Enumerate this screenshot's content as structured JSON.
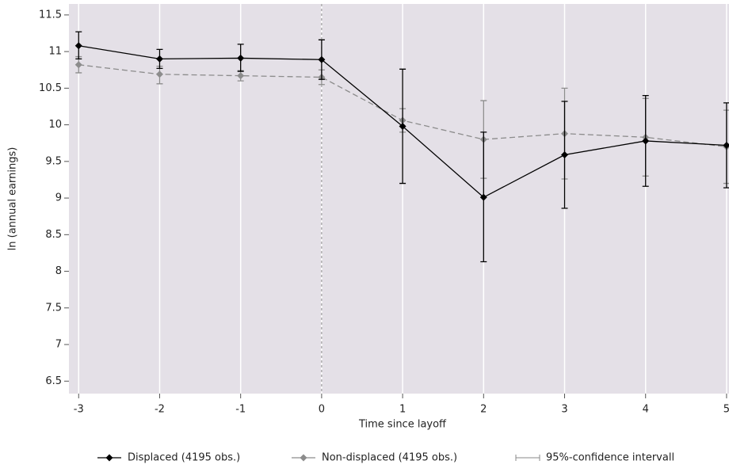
{
  "chart_data": {
    "type": "line",
    "x_label": "Time since layoff",
    "y_label": "ln (annual earnings)",
    "x": [
      -3,
      -2,
      -1,
      0,
      1,
      2,
      3,
      4,
      5
    ],
    "series": [
      {
        "name": "Displaced (4195 obs.)",
        "color": "#000000",
        "dash": false,
        "values": [
          11.08,
          10.9,
          10.91,
          10.89,
          9.98,
          9.01,
          9.59,
          9.78,
          9.72
        ],
        "lower": [
          10.9,
          10.77,
          10.73,
          10.62,
          9.2,
          8.13,
          8.86,
          9.16,
          9.14
        ],
        "upper": [
          11.27,
          11.03,
          11.1,
          11.16,
          10.76,
          9.9,
          10.32,
          10.4,
          10.3
        ]
      },
      {
        "name": "Non-displaced (4195 obs.)",
        "color": "#8c8c8c",
        "dash": true,
        "values": [
          10.82,
          10.69,
          10.67,
          10.65,
          10.06,
          9.8,
          9.88,
          9.83,
          9.7
        ],
        "lower": [
          10.71,
          10.56,
          10.6,
          10.55,
          9.9,
          9.27,
          9.26,
          9.3,
          9.2
        ],
        "upper": [
          10.93,
          10.8,
          10.74,
          10.75,
          10.22,
          10.33,
          10.5,
          10.36,
          10.2
        ]
      }
    ],
    "ci_legend": "95%-confidence intervall",
    "vline": 0,
    "xlim": [
      -3.12,
      5.03
    ],
    "ylim": [
      6.33,
      11.65
    ],
    "xticks": [
      -3,
      -2,
      -1,
      0,
      1,
      2,
      3,
      4,
      5
    ],
    "yticks": [
      6.5,
      7,
      7.5,
      8,
      8.5,
      9,
      9.5,
      10,
      10.5,
      11,
      11.5
    ],
    "grid": true,
    "background": "#e4e0e7"
  }
}
